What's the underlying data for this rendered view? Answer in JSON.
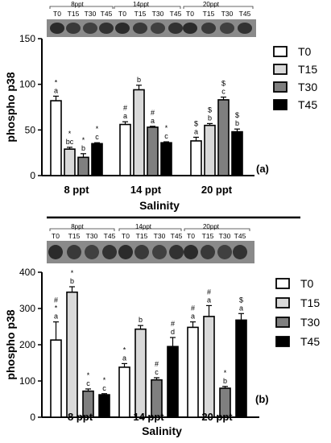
{
  "chart_data": [
    {
      "type": "bar",
      "panel_label": "(a)",
      "blot_groups": [
        "8ppt",
        "14ppt",
        "20ppt"
      ],
      "lane_labels": [
        "T0",
        "T15",
        "T30",
        "T45"
      ],
      "categories": [
        "8 ppt",
        "14 ppt",
        "20 ppt"
      ],
      "xlabel": "Salinity",
      "ylabel": "phospho p38",
      "ylim": [
        0,
        150
      ],
      "yticks": [
        0,
        50,
        100,
        150
      ],
      "legend_position": "right",
      "series": [
        {
          "name": "T0",
          "fill": "#ffffff",
          "values": [
            82,
            56,
            38
          ],
          "errors": [
            5,
            3,
            4
          ],
          "annotations": [
            [
              "*",
              "a"
            ],
            [
              "#",
              "a"
            ],
            [
              "$",
              "a"
            ]
          ]
        },
        {
          "name": "T15",
          "fill": "#d9d9d9",
          "values": [
            29,
            94,
            55
          ],
          "errors": [
            2,
            5,
            2
          ],
          "annotations": [
            [
              "*",
              "bc"
            ],
            [
              "b"
            ],
            [
              "$",
              "b"
            ]
          ]
        },
        {
          "name": "T30",
          "fill": "#7f7f7f",
          "values": [
            20,
            53,
            83
          ],
          "errors": [
            4,
            1,
            3
          ],
          "annotations": [
            [
              "*",
              "b"
            ],
            [
              "#",
              "a"
            ],
            [
              "$",
              "c"
            ]
          ]
        },
        {
          "name": "T45",
          "fill": "#000000",
          "values": [
            35,
            36,
            48
          ],
          "errors": [
            1,
            1,
            3
          ],
          "annotations": [
            [
              "*",
              "c"
            ],
            [
              "*",
              "c"
            ],
            [
              "$",
              "b"
            ]
          ]
        }
      ]
    },
    {
      "type": "bar",
      "panel_label": "(b)",
      "blot_groups": [
        "8ppt",
        "14ppt",
        "20ppt"
      ],
      "lane_labels": [
        "T0",
        "T15",
        "T30",
        "T45"
      ],
      "categories": [
        "8 ppt",
        "14 ppt",
        "20 ppt"
      ],
      "xlabel": "Salinity",
      "ylabel": "phospho p38",
      "ylim": [
        0,
        400
      ],
      "yticks": [
        0,
        100,
        200,
        300,
        400
      ],
      "legend_position": "right",
      "series": [
        {
          "name": "T0",
          "fill": "#ffffff",
          "values": [
            213,
            138,
            248
          ],
          "errors": [
            50,
            10,
            15
          ],
          "annotations": [
            [
              "#",
              "*",
              "a"
            ],
            [
              "*",
              "a"
            ],
            [
              "#",
              "a"
            ]
          ]
        },
        {
          "name": "T15",
          "fill": "#d9d9d9",
          "values": [
            345,
            243,
            278
          ],
          "errors": [
            15,
            10,
            30
          ],
          "annotations": [
            [
              "*",
              "b"
            ],
            [
              "b"
            ],
            [
              "#",
              "a"
            ]
          ]
        },
        {
          "name": "T30",
          "fill": "#7f7f7f",
          "values": [
            72,
            103,
            80
          ],
          "errors": [
            6,
            6,
            5
          ],
          "annotations": [
            [
              "*",
              "c"
            ],
            [
              "#",
              "c"
            ],
            [
              "*",
              "b"
            ]
          ]
        },
        {
          "name": "T45",
          "fill": "#000000",
          "values": [
            62,
            195,
            268
          ],
          "errors": [
            3,
            25,
            18
          ],
          "annotations": [
            [
              "*",
              "c"
            ],
            [
              "#",
              "d"
            ],
            [
              "$",
              "a"
            ]
          ]
        }
      ]
    }
  ]
}
